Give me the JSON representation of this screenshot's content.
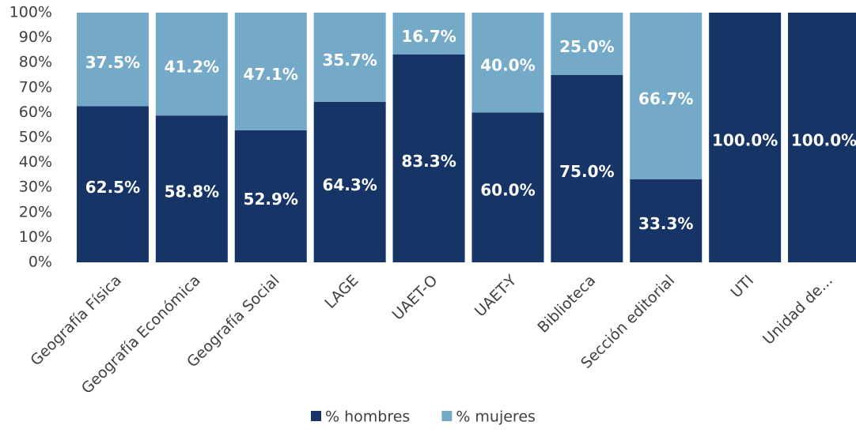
{
  "chart_data": {
    "type": "bar",
    "stacked": true,
    "categories": [
      "Geografía Física",
      "Geografía Económica",
      "Geografía Social",
      "LAGE",
      "UAET-O",
      "UAET-Y",
      "Biblioteca",
      "Sección editorial",
      "UTI",
      "Unidad de..."
    ],
    "series": [
      {
        "name": "% hombres",
        "color": "#163566",
        "values": [
          62.5,
          58.8,
          52.9,
          64.3,
          83.3,
          60.0,
          75.0,
          33.3,
          100.0,
          100.0
        ],
        "value_labels": [
          "62.5%",
          "58.8%",
          "52.9%",
          "64.3%",
          "83.3%",
          "60.0%",
          "75.0%",
          "33.3%",
          "100.0%",
          "100.0%"
        ]
      },
      {
        "name": "% mujeres",
        "color": "#74a9c8",
        "values": [
          37.5,
          41.2,
          47.1,
          35.7,
          16.7,
          40.0,
          25.0,
          66.7,
          0,
          0
        ],
        "value_labels": [
          "37.5%",
          "41.2%",
          "47.1%",
          "35.7%",
          "16.7%",
          "40.0%",
          "25.0%",
          "66.7%",
          null,
          null
        ]
      }
    ],
    "ylim": [
      0,
      100
    ],
    "yticks": [
      {
        "value": 0,
        "label": "0%"
      },
      {
        "value": 10,
        "label": "10%"
      },
      {
        "value": 20,
        "label": "20%"
      },
      {
        "value": 30,
        "label": "30%"
      },
      {
        "value": 40,
        "label": "40%"
      },
      {
        "value": 50,
        "label": "50%"
      },
      {
        "value": 60,
        "label": "60%"
      },
      {
        "value": 70,
        "label": "70%"
      },
      {
        "value": 80,
        "label": "80%"
      },
      {
        "value": 90,
        "label": "90%"
      },
      {
        "value": 100,
        "label": "100%"
      }
    ],
    "legend": "bottom"
  }
}
